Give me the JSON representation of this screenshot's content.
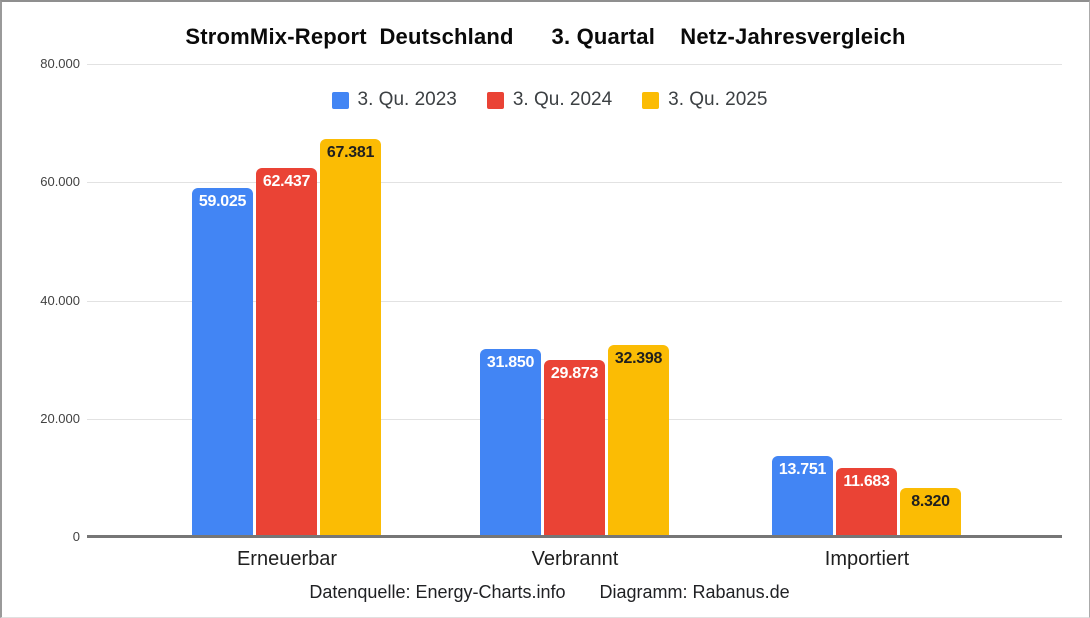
{
  "header": {
    "title": "StromMix-Report  Deutschland      3. Quartal    Netz-Jahresvergleich"
  },
  "footer": {
    "source": "Datenquelle: Energy-Charts.info",
    "credit": "Diagramm: Rabanus.de"
  },
  "chart_data": {
    "type": "bar",
    "title": "StromMix-Report Deutschland 3. Quartal Netz-Jahresvergleich",
    "categories": [
      "Erneuerbar",
      "Verbrannt",
      "Importiert"
    ],
    "series": [
      {
        "name": "3. Qu. 2023",
        "color": "#4285F4",
        "value_label_color": "#FFFFFF",
        "values": [
          59025,
          31850,
          13751
        ],
        "value_labels": [
          "59.025",
          "31.850",
          "13.751"
        ]
      },
      {
        "name": "3. Qu. 2024",
        "color": "#EA4335",
        "value_label_color": "#FFFFFF",
        "values": [
          62437,
          29873,
          11683
        ],
        "value_labels": [
          "62.437",
          "29.873",
          "11.683"
        ]
      },
      {
        "name": "3. Qu. 2025",
        "color": "#FBBC04",
        "value_label_color": "#1F1F1F",
        "values": [
          67381,
          32398,
          8320
        ],
        "value_labels": [
          "67.381",
          "32.398",
          "8.320"
        ]
      }
    ],
    "ylim": [
      0,
      80000
    ],
    "yticks": [
      0,
      20000,
      40000,
      60000,
      80000
    ],
    "ytick_labels": [
      "0",
      "20.000",
      "40.000",
      "60.000",
      "80.000"
    ],
    "grid": true,
    "legend_position": "top"
  }
}
